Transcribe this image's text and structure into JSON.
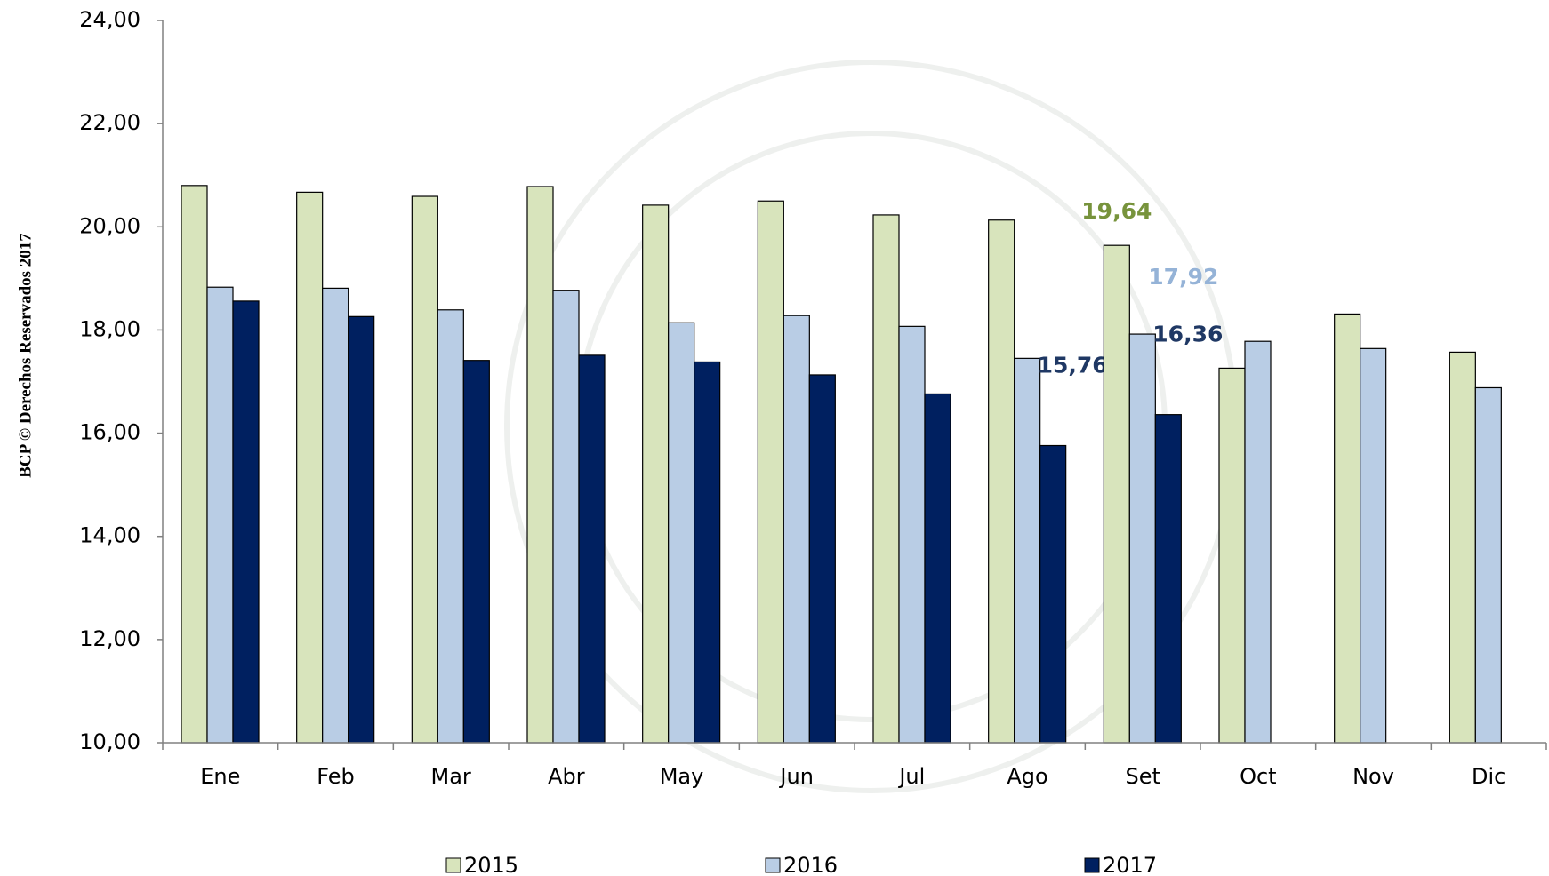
{
  "chart_data": {
    "type": "bar",
    "side_note": "BCP © Derechos Reservados 2017",
    "categories": [
      "Ene",
      "Feb",
      "Mar",
      "Abr",
      "May",
      "Jun",
      "Jul",
      "Ago",
      "Set",
      "Oct",
      "Nov",
      "Dic"
    ],
    "series": [
      {
        "name": "2015",
        "color": "#d8e4bc",
        "label_color": "#77933c",
        "values": [
          20.8,
          20.67,
          20.59,
          20.78,
          20.42,
          20.5,
          20.23,
          20.13,
          19.64,
          17.26,
          18.31,
          17.57
        ],
        "value_labels": [
          null,
          null,
          null,
          null,
          null,
          null,
          null,
          null,
          "19,64",
          null,
          null,
          null
        ]
      },
      {
        "name": "2016",
        "color": "#b9cde5",
        "label_color": "#95b3d7",
        "values": [
          18.83,
          18.81,
          18.39,
          18.77,
          18.14,
          18.28,
          18.07,
          17.45,
          17.92,
          17.78,
          17.64,
          16.88
        ],
        "value_labels": [
          null,
          null,
          null,
          null,
          null,
          null,
          null,
          null,
          "17,92",
          null,
          null,
          null
        ]
      },
      {
        "name": "2017",
        "color": "#002060",
        "label_color": "#1f3864",
        "values": [
          18.56,
          18.26,
          17.41,
          17.51,
          17.38,
          17.13,
          16.76,
          15.76,
          16.36,
          null,
          null,
          null
        ],
        "value_labels": [
          null,
          null,
          null,
          null,
          null,
          null,
          null,
          "15,76",
          "16,36",
          null,
          null,
          null
        ]
      }
    ],
    "ylim": [
      10,
      24
    ],
    "yticks": [
      {
        "value": 10,
        "label": "10,00"
      },
      {
        "value": 12,
        "label": "12,00"
      },
      {
        "value": 14,
        "label": "14,00"
      },
      {
        "value": 16,
        "label": "16,00"
      },
      {
        "value": 18,
        "label": "18,00"
      },
      {
        "value": 20,
        "label": "20,00"
      },
      {
        "value": 22,
        "label": "22,00"
      },
      {
        "value": 24,
        "label": "24,00"
      }
    ],
    "grid": false,
    "legend": "bottom"
  }
}
